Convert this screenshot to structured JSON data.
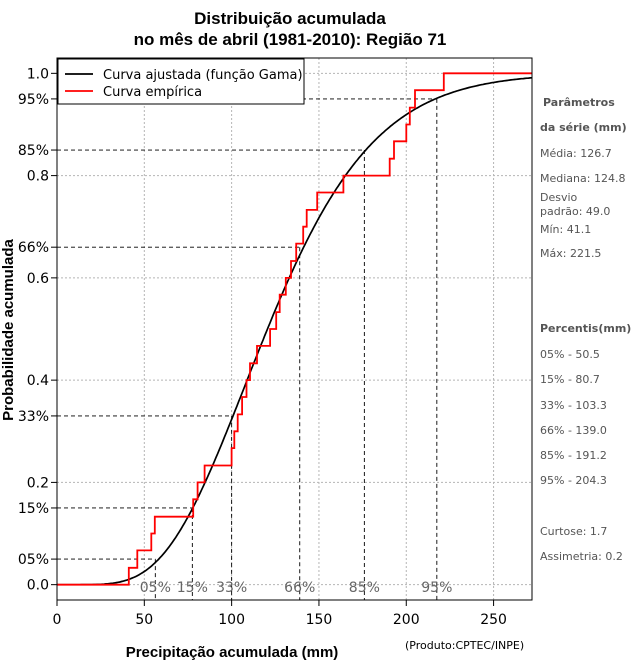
{
  "chart_data": {
    "type": "line",
    "title_line1": "Distribuição acumulada",
    "title_line2": "no mês de abril (1981-2010): Região 71",
    "xlabel": "Precipitação acumulada (mm)",
    "ylabel": "Probabilidade acumulada",
    "xlim": [
      0,
      272
    ],
    "ylim": [
      -0.03,
      1.03
    ],
    "x_ticks": [
      0,
      50,
      100,
      150,
      200,
      250
    ],
    "y_ticks": [
      {
        "value": 0.0,
        "label": "0.0"
      },
      {
        "value": 0.05,
        "label": "05%"
      },
      {
        "value": 0.15,
        "label": "15%"
      },
      {
        "value": 0.2,
        "label": "0.2"
      },
      {
        "value": 0.33,
        "label": "33%"
      },
      {
        "value": 0.4,
        "label": "0.4"
      },
      {
        "value": 0.6,
        "label": "0.6"
      },
      {
        "value": 0.66,
        "label": "66%"
      },
      {
        "value": 0.8,
        "label": "0.8"
      },
      {
        "value": 0.85,
        "label": "85%"
      },
      {
        "value": 0.95,
        "label": "95%"
      },
      {
        "value": 1.0,
        "label": "1.0"
      }
    ],
    "grid_x": [
      50,
      100,
      150,
      200,
      250
    ],
    "grid_y": [
      0.0,
      0.2,
      0.4,
      0.6,
      0.8,
      1.0
    ],
    "legend": {
      "position": "top-left",
      "entries": [
        {
          "label": "Curva ajustada (função Gama)",
          "color": "#000000"
        },
        {
          "label": "Curva empírica",
          "color": "#ff0000"
        }
      ]
    },
    "series": [
      {
        "name": "Curva ajustada (função Gama)",
        "color": "#000000",
        "type": "gamma_cdf",
        "shape": 6.69,
        "scale": 18.95
      },
      {
        "name": "Curva empírica",
        "color": "#ff0000",
        "type": "step",
        "start_x": 0,
        "end_x": 272,
        "steps": [
          [
            41.1,
            0.033
          ],
          [
            46,
            0.067
          ],
          [
            54,
            0.1
          ],
          [
            56,
            0.133
          ],
          [
            78,
            0.167
          ],
          [
            80.5,
            0.2
          ],
          [
            84.5,
            0.233
          ],
          [
            100,
            0.267
          ],
          [
            101.5,
            0.3
          ],
          [
            103.5,
            0.333
          ],
          [
            106,
            0.367
          ],
          [
            108.5,
            0.4
          ],
          [
            110.5,
            0.433
          ],
          [
            114.5,
            0.467
          ],
          [
            122,
            0.5
          ],
          [
            125.5,
            0.533
          ],
          [
            127.5,
            0.567
          ],
          [
            131,
            0.6
          ],
          [
            134,
            0.633
          ],
          [
            137,
            0.667
          ],
          [
            141,
            0.7
          ],
          [
            143,
            0.733
          ],
          [
            149,
            0.767
          ],
          [
            158,
            0.767
          ],
          [
            164,
            0.8
          ],
          [
            190.5,
            0.833
          ],
          [
            193,
            0.867
          ],
          [
            200,
            0.9
          ],
          [
            202,
            0.933
          ],
          [
            205,
            0.967
          ],
          [
            221.5,
            1.0
          ]
        ]
      }
    ],
    "percentile_markers": [
      {
        "label": "05%",
        "prob": 0.05,
        "x": 56.3
      },
      {
        "label": "15%",
        "prob": 0.15,
        "x": 77.5
      },
      {
        "label": "33%",
        "prob": 0.33,
        "x": 100
      },
      {
        "label": "66%",
        "prob": 0.66,
        "x": 139
      },
      {
        "label": "85%",
        "prob": 0.85,
        "x": 176
      },
      {
        "label": "95%",
        "prob": 0.95,
        "x": 217.5
      }
    ]
  },
  "sidebar": {
    "params_header": [
      "Parâmetros",
      "da série (mm)"
    ],
    "params": [
      "Média: 126.7",
      "Mediana: 124.8",
      "Desvio",
      "padrão: 49.0",
      "Mín: 41.1",
      "Máx: 221.5"
    ],
    "percentis_header": "Percentis(mm)",
    "percentis": [
      "05% - 50.5",
      "15% - 80.7",
      "33% - 103.3",
      "66% - 139.0",
      "85% - 191.2",
      "95% - 204.3"
    ],
    "extra": [
      "Curtose: 1.7",
      "Assimetria: 0.2"
    ]
  },
  "credit": "(Produto:CPTEC/INPE)"
}
